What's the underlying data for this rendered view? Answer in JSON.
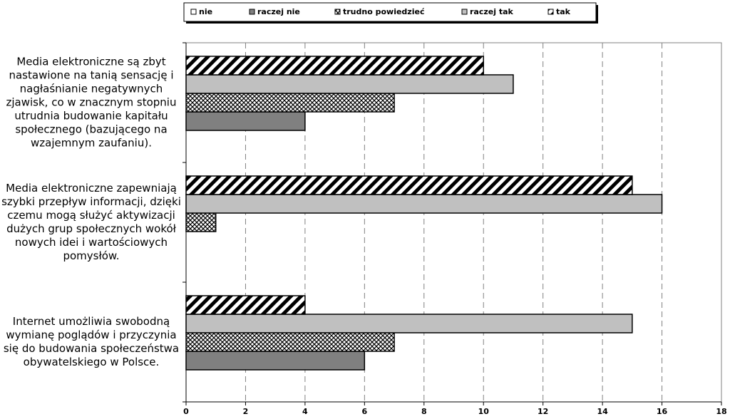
{
  "chart_data": {
    "type": "hbar",
    "categories": [
      "Media elektroniczne są zbyt nastawione na tanią sensację i nagłaśnianie negatywnych zjawisk, co w znacznym stopniu utrudnia budowanie kapitału społecznego (bazującego na wzajemnym zaufaniu).",
      "Media elektroniczne zapewniają szybki przepływ informacji, dzięki czemu mogą służyć aktywizacji dużych grup społecznych wokół nowych idei i wartościowych pomysłów.",
      "Internet umożliwia swobodną wymianę poglądów i przyczynia się do budowania społeczeństwa obywatelskiego w Polsce."
    ],
    "series": [
      {
        "name": "nie",
        "color": "#ffffff",
        "pattern": "none",
        "values": [
          0,
          0,
          0
        ]
      },
      {
        "name": "raczej nie",
        "color": "#808080",
        "pattern": "none",
        "values": [
          4,
          0,
          6
        ]
      },
      {
        "name": "trudno powiedzieć",
        "color": "#ffffff",
        "pattern": "crosshatch",
        "values": [
          7,
          1,
          7
        ]
      },
      {
        "name": "raczej tak",
        "color": "#c0c0c0",
        "pattern": "none",
        "values": [
          11,
          16,
          15
        ]
      },
      {
        "name": "tak",
        "color": "#ffffff",
        "pattern": "diagonal",
        "values": [
          10,
          15,
          4
        ]
      }
    ],
    "xlim": [
      0,
      18
    ],
    "xticks": [
      0,
      2,
      4,
      6,
      8,
      10,
      12,
      14,
      16,
      18
    ],
    "grid": true,
    "legend": "top"
  }
}
